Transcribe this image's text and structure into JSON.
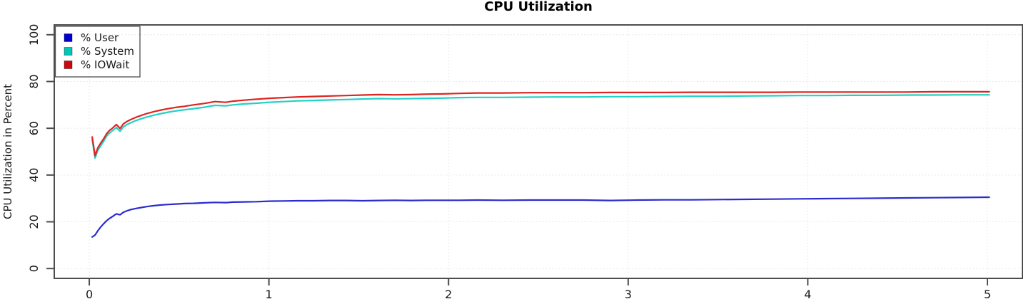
{
  "chart_data": {
    "type": "line",
    "title": "CPU Utilization",
    "xlabel": "",
    "ylabel": "CPU Utilization in Percent",
    "xlim": [
      0,
      5
    ],
    "ylim": [
      0,
      100
    ],
    "x_ticks": [
      0,
      1,
      2,
      3,
      4,
      5
    ],
    "y_ticks": [
      0,
      20,
      40,
      60,
      80,
      100
    ],
    "grid": "dotted",
    "legend_position": "top-left",
    "colors": {
      "axis": "#4d4d4d",
      "grid": "#e3e3e3",
      "tick_text": "#1a1a1a",
      "title_text": "#000000"
    },
    "x": [
      0.016,
      0.032,
      0.048,
      0.064,
      0.08,
      0.096,
      0.112,
      0.128,
      0.151,
      0.171,
      0.19,
      0.21,
      0.23,
      0.26,
      0.29,
      0.32,
      0.36,
      0.4,
      0.44,
      0.48,
      0.53,
      0.58,
      0.64,
      0.7,
      0.76,
      0.8,
      0.86,
      0.93,
      1.0,
      1.08,
      1.16,
      1.25,
      1.34,
      1.43,
      1.52,
      1.61,
      1.7,
      1.79,
      1.88,
      1.97,
      2.06,
      2.16,
      2.3,
      2.45,
      2.6,
      2.75,
      2.9,
      3.05,
      3.2,
      3.35,
      3.5,
      3.65,
      3.8,
      3.95,
      4.1,
      4.25,
      4.4,
      4.55,
      4.7,
      4.85,
      5.01
    ],
    "series": [
      {
        "name": "% User",
        "slug": "user",
        "color": "#2b2bd0",
        "swatch": "#0000cd",
        "values": [
          13.5,
          14.3,
          16.2,
          17.8,
          19.2,
          20.4,
          21.4,
          22.2,
          23.4,
          23.0,
          24.1,
          24.7,
          25.2,
          25.7,
          26.1,
          26.5,
          26.9,
          27.2,
          27.4,
          27.6,
          27.8,
          27.9,
          28.1,
          28.3,
          28.2,
          28.4,
          28.5,
          28.6,
          28.8,
          28.9,
          29.0,
          29.0,
          29.1,
          29.1,
          29.0,
          29.1,
          29.2,
          29.1,
          29.2,
          29.2,
          29.2,
          29.3,
          29.2,
          29.3,
          29.3,
          29.3,
          29.1,
          29.3,
          29.4,
          29.4,
          29.5,
          29.6,
          29.7,
          29.8,
          29.9,
          30.0,
          30.1,
          30.2,
          30.3,
          30.4,
          30.5
        ]
      },
      {
        "name": "% System",
        "slug": "system",
        "color": "#1fd2c5",
        "swatch": "#00c5b8",
        "values": [
          55.3,
          47.3,
          50.6,
          52.6,
          54.4,
          56.6,
          57.9,
          58.9,
          60.3,
          58.7,
          60.6,
          61.6,
          62.3,
          63.3,
          64.1,
          64.8,
          65.6,
          66.3,
          66.9,
          67.4,
          67.9,
          68.4,
          69.0,
          69.8,
          69.6,
          70.0,
          70.4,
          70.7,
          71.1,
          71.4,
          71.7,
          71.9,
          72.1,
          72.3,
          72.5,
          72.7,
          72.6,
          72.7,
          72.8,
          72.9,
          73.1,
          73.2,
          73.2,
          73.3,
          73.4,
          73.4,
          73.5,
          73.5,
          73.6,
          73.7,
          73.7,
          73.8,
          73.9,
          74.0,
          74.0,
          74.1,
          74.1,
          74.2,
          74.2,
          74.3,
          74.3
        ]
      },
      {
        "name": "% IOWait",
        "slug": "iowait",
        "color": "#de2420",
        "swatch": "#cb0b0b",
        "values": [
          56.3,
          48.3,
          51.7,
          53.7,
          55.5,
          57.6,
          59.0,
          60.0,
          61.6,
          59.9,
          61.9,
          62.9,
          63.7,
          64.7,
          65.5,
          66.3,
          67.1,
          67.8,
          68.4,
          68.9,
          69.4,
          70.0,
          70.6,
          71.4,
          71.1,
          71.6,
          72.0,
          72.4,
          72.8,
          73.1,
          73.4,
          73.6,
          73.8,
          74.0,
          74.2,
          74.4,
          74.3,
          74.4,
          74.6,
          74.7,
          74.9,
          75.1,
          75.1,
          75.2,
          75.2,
          75.2,
          75.3,
          75.3,
          75.3,
          75.4,
          75.4,
          75.4,
          75.4,
          75.5,
          75.5,
          75.5,
          75.5,
          75.5,
          75.6,
          75.6,
          75.6
        ]
      }
    ]
  }
}
